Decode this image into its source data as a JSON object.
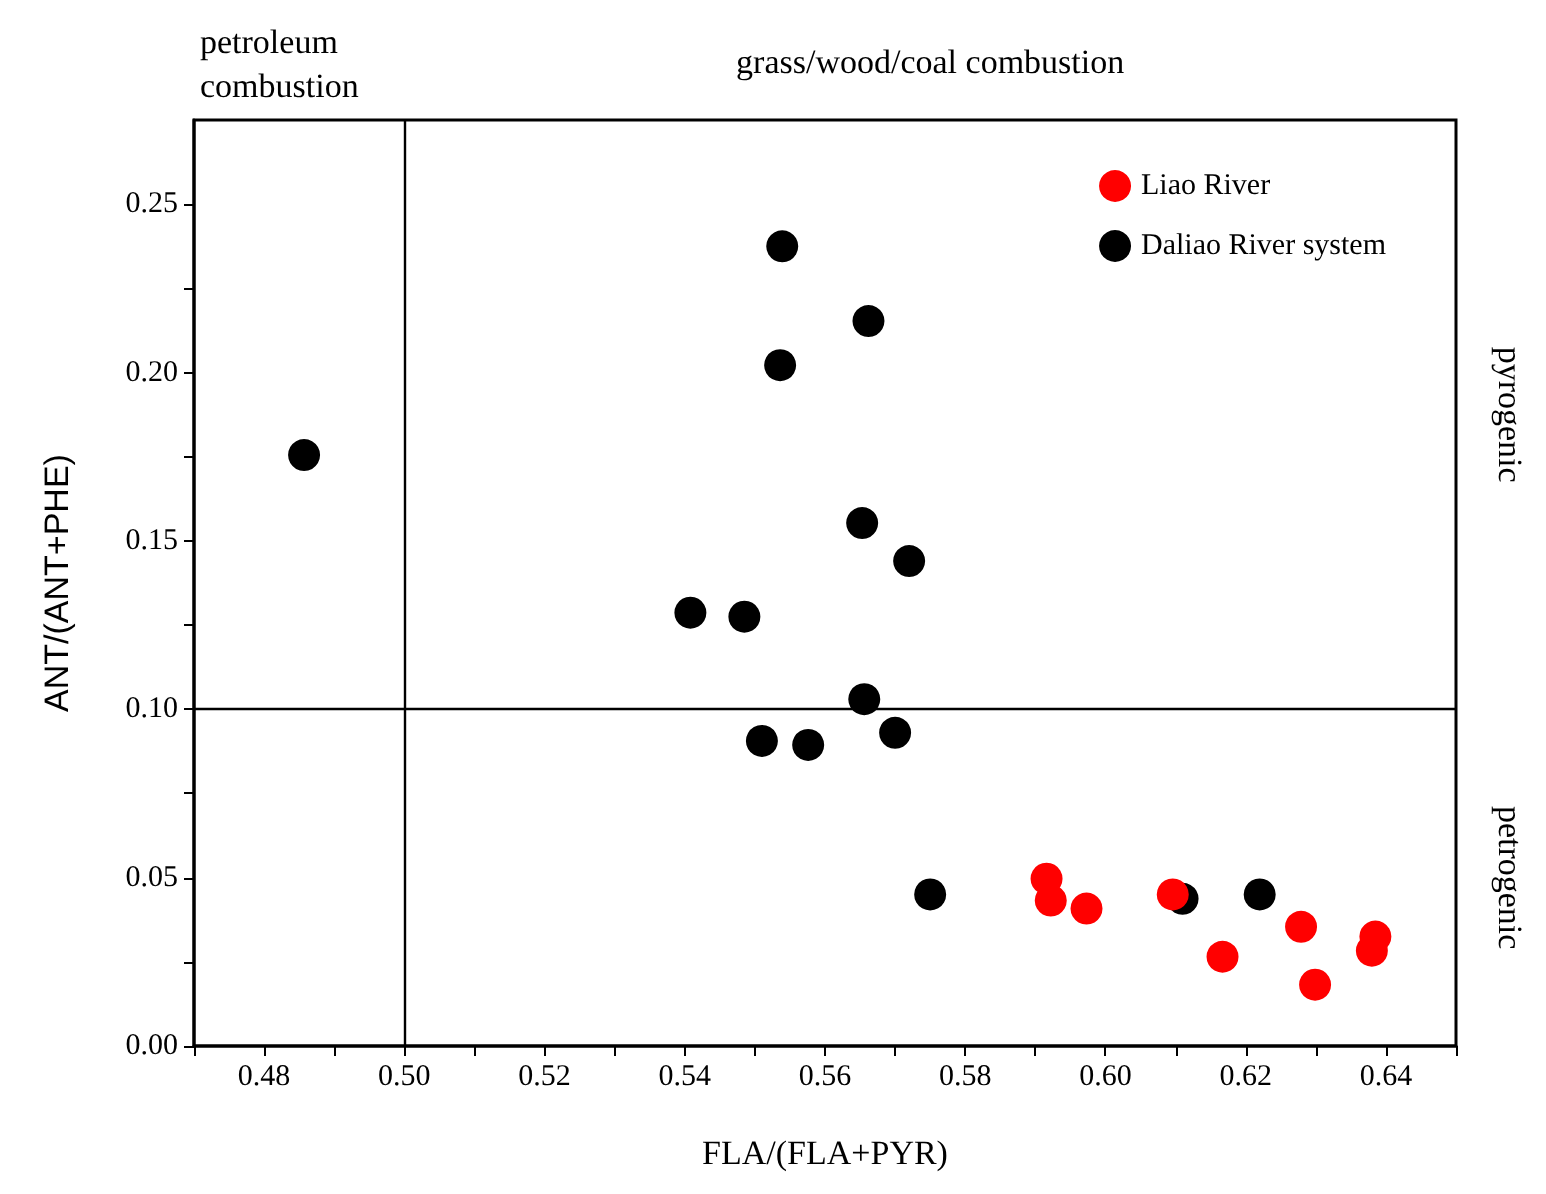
{
  "chart_data": {
    "type": "scatter",
    "xlabel": "FLA/(FLA+PYR)",
    "ylabel": "ANT/(ANT+PHE)",
    "xlim": [
      0.47,
      0.65
    ],
    "ylim": [
      0,
      0.275
    ],
    "xticks": [
      {
        "value": 0.47,
        "label": null
      },
      {
        "value": 0.48,
        "label": "0.48"
      },
      {
        "value": 0.49,
        "label": null
      },
      {
        "value": 0.5,
        "label": "0.50"
      },
      {
        "value": 0.51,
        "label": null
      },
      {
        "value": 0.52,
        "label": "0.52"
      },
      {
        "value": 0.53,
        "label": null
      },
      {
        "value": 0.54,
        "label": "0.54"
      },
      {
        "value": 0.55,
        "label": null
      },
      {
        "value": 0.56,
        "label": "0.56"
      },
      {
        "value": 0.57,
        "label": null
      },
      {
        "value": 0.58,
        "label": "0.58"
      },
      {
        "value": 0.59,
        "label": null
      },
      {
        "value": 0.6,
        "label": "0.60"
      },
      {
        "value": 0.61,
        "label": null
      },
      {
        "value": 0.62,
        "label": "0.62"
      },
      {
        "value": 0.63,
        "label": null
      },
      {
        "value": 0.64,
        "label": "0.64"
      },
      {
        "value": 0.65,
        "label": null
      }
    ],
    "yticks": [
      {
        "value": 0,
        "label": "0.00"
      },
      {
        "value": 0.025,
        "label": null
      },
      {
        "value": 0.05,
        "label": "0.05"
      },
      {
        "value": 0.075,
        "label": null
      },
      {
        "value": 0.1,
        "label": "0.10"
      },
      {
        "value": 0.125,
        "label": null
      },
      {
        "value": 0.15,
        "label": "0.15"
      },
      {
        "value": 0.175,
        "label": null
      },
      {
        "value": 0.2,
        "label": "0.20"
      },
      {
        "value": 0.225,
        "label": null
      },
      {
        "value": 0.25,
        "label": "0.25"
      }
    ],
    "grid": false,
    "legend": "top right",
    "marker": "circle",
    "series": [
      {
        "name": "Liao River",
        "color": "#ff0000",
        "x": [
          0.5916,
          0.5922,
          0.5973,
          0.6096,
          0.6167,
          0.6279,
          0.6299,
          0.638,
          0.6385
        ],
        "values": [
          0.0497,
          0.0432,
          0.0408,
          0.045,
          0.0265,
          0.0354,
          0.0182,
          0.0283,
          0.0325
        ]
      },
      {
        "name": "Daliao River system",
        "color": "#000000",
        "x": [
          0.4857,
          0.5539,
          0.5662,
          0.5536,
          0.5653,
          0.572,
          0.5408,
          0.5485,
          0.5656,
          0.551,
          0.5576,
          0.57,
          0.575,
          0.611,
          0.622
        ],
        "values": [
          0.1755,
          0.2375,
          0.2153,
          0.2022,
          0.1553,
          0.144,
          0.1287,
          0.1275,
          0.103,
          0.0906,
          0.0894,
          0.093,
          0.045,
          0.0437,
          0.045
        ]
      }
    ],
    "ref_lines": [
      {
        "axis": "x",
        "value": 0.5,
        "color": "#000000"
      },
      {
        "axis": "y",
        "value": 0.1,
        "color": "#000000"
      }
    ],
    "annotations": [
      "petroleum\ncombustion",
      "grass/wood/coal combustion",
      "pyrogenic",
      "petrogenic"
    ]
  }
}
